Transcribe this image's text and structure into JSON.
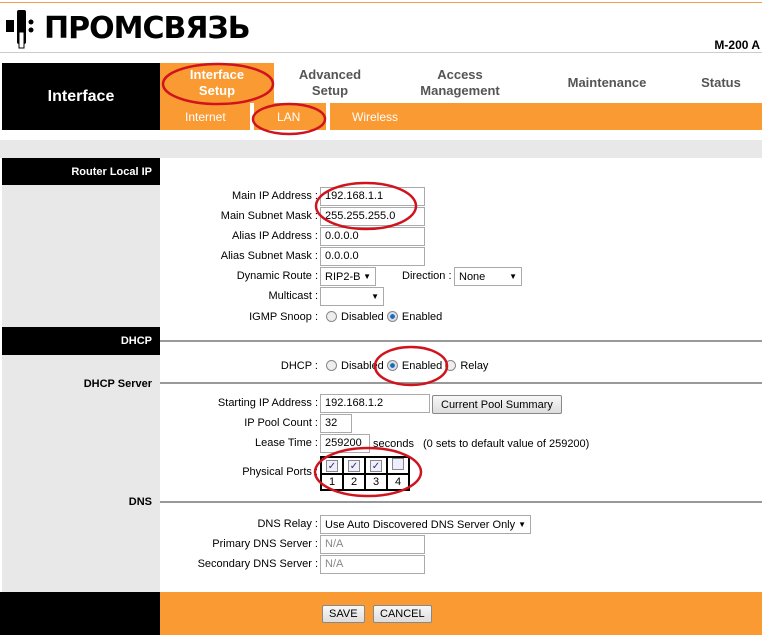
{
  "header": {
    "logo_text": "ПРОМСВЯЗЬ",
    "model": "M-200 A"
  },
  "nav": {
    "section": "Interface",
    "tabs": [
      {
        "label1": "Interface",
        "label2": "Setup",
        "active": true
      },
      {
        "label1": "Advanced",
        "label2": "Setup"
      },
      {
        "label1": "Access",
        "label2": "Management"
      },
      {
        "label1": "Maintenance"
      },
      {
        "label1": "Status"
      }
    ],
    "subtabs": [
      "Internet",
      "LAN",
      "Wireless"
    ],
    "active_subtab": "LAN"
  },
  "router": {
    "title": "Router Local IP",
    "main_ip_label": "Main IP Address :",
    "main_ip": "192.168.1.1",
    "main_mask_label": "Main Subnet Mask :",
    "main_mask": "255.255.255.0",
    "alias_ip_label": "Alias IP Address :",
    "alias_ip": "0.0.0.0",
    "alias_mask_label": "Alias Subnet Mask :",
    "alias_mask": "0.0.0.0",
    "dyn_route_label": "Dynamic Route :",
    "dyn_route": "RIP2-B",
    "direction_label": "Direction :",
    "direction": "None",
    "multicast_label": "Multicast :",
    "multicast": "",
    "igmp_label": "IGMP Snoop :",
    "igmp_disabled": "Disabled",
    "igmp_enabled": "Enabled",
    "igmp_value": "Enabled"
  },
  "dhcp": {
    "title": "DHCP",
    "dhcp_label": "DHCP :",
    "opt_disabled": "Disabled",
    "opt_enabled": "Enabled",
    "opt_relay": "Relay",
    "value": "Enabled"
  },
  "dhcp_server": {
    "title": "DHCP Server",
    "start_ip_label": "Starting IP Address :",
    "start_ip": "192.168.1.2",
    "pool_button": "Current Pool Summary",
    "pool_count_label": "IP Pool Count :",
    "pool_count": "32",
    "lease_label": "Lease Time :",
    "lease": "259200",
    "lease_unit": "seconds",
    "lease_note": "(0 sets to default value of 259200)",
    "ports_label": "Physical Ports :",
    "ports": [
      {
        "n": "1",
        "checked": true
      },
      {
        "n": "2",
        "checked": true
      },
      {
        "n": "3",
        "checked": true
      },
      {
        "n": "4",
        "checked": false
      }
    ]
  },
  "dns": {
    "title": "DNS",
    "relay_label": "DNS Relay :",
    "relay": "Use Auto Discovered DNS Server Only",
    "primary_label": "Primary DNS Server :",
    "primary": "N/A",
    "secondary_label": "Secondary DNS Server :",
    "secondary": "N/A"
  },
  "footer": {
    "save": "SAVE",
    "cancel": "CANCEL"
  },
  "colors": {
    "accent": "#f99a33",
    "annotation": "#d0141e"
  }
}
